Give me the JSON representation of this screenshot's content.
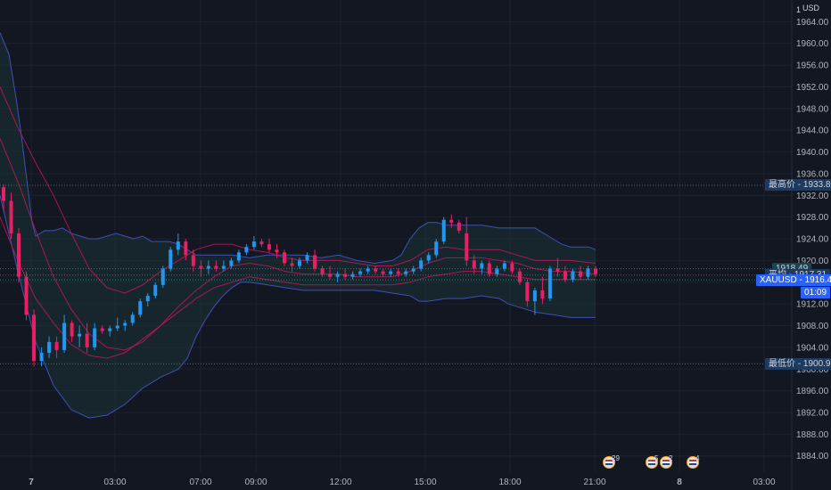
{
  "chart_data": {
    "type": "candlestick",
    "symbol": "XAUUSD",
    "currency": "USD",
    "currency_top": "1",
    "ylim": [
      1881,
      1968
    ],
    "y_ticks": [
      "1964.00",
      "1960.00",
      "1956.00",
      "1952.00",
      "1948.00",
      "1944.00",
      "1940.00",
      "1936.00",
      "1932.00",
      "1928.00",
      "1924.00",
      "1920.00",
      "1916.00",
      "1912.00",
      "1908.00",
      "1904.00",
      "1900.00",
      "1896.00",
      "1892.00",
      "1888.00",
      "1884.00"
    ],
    "x_ticks": [
      "7",
      "03:00",
      "07:00",
      "09:00",
      "12:00",
      "15:00",
      "18:00",
      "21:00",
      "8",
      "03:00"
    ],
    "candles": [
      [
        1933.5,
        1934.0,
        1929.0,
        1931.0
      ],
      [
        1931.0,
        1932.5,
        1924.0,
        1925.0
      ],
      [
        1925.0,
        1926.0,
        1916.0,
        1917.0
      ],
      [
        1917.0,
        1918.0,
        1909.0,
        1910.0
      ],
      [
        1910.0,
        1911.0,
        1900.5,
        1901.5
      ],
      [
        1901.5,
        1904.0,
        1900.5,
        1903.0
      ],
      [
        1903.0,
        1906.0,
        1902.0,
        1905.0
      ],
      [
        1905.0,
        1906.0,
        1902.0,
        1903.5
      ],
      [
        1903.5,
        1910.0,
        1903.0,
        1908.5
      ],
      [
        1908.5,
        1909.0,
        1905.0,
        1906.0
      ],
      [
        1906.0,
        1908.0,
        1904.0,
        1906.5
      ],
      [
        1906.5,
        1908.5,
        1903.0,
        1904.0
      ],
      [
        1904.0,
        1908.5,
        1903.5,
        1907.5
      ],
      [
        1907.5,
        1908.0,
        1906.5,
        1907.0
      ],
      [
        1907.0,
        1908.0,
        1906.0,
        1907.5
      ],
      [
        1907.5,
        1909.5,
        1907.0,
        1908.0
      ],
      [
        1908.0,
        1909.0,
        1907.0,
        1908.5
      ],
      [
        1908.5,
        1910.5,
        1908.0,
        1910.0
      ],
      [
        1910.0,
        1913.0,
        1909.5,
        1912.5
      ],
      [
        1912.5,
        1914.0,
        1911.5,
        1913.5
      ],
      [
        1913.5,
        1916.0,
        1913.0,
        1915.5
      ],
      [
        1915.5,
        1919.0,
        1915.0,
        1918.5
      ],
      [
        1918.5,
        1922.5,
        1918.0,
        1922.0
      ],
      [
        1922.0,
        1925.0,
        1921.0,
        1923.5
      ],
      [
        1923.5,
        1924.0,
        1920.0,
        1921.0
      ],
      [
        1921.0,
        1922.0,
        1918.0,
        1919.0
      ],
      [
        1919.0,
        1920.0,
        1917.0,
        1918.5
      ],
      [
        1918.5,
        1920.0,
        1917.5,
        1919.0
      ],
      [
        1919.0,
        1920.0,
        1918.0,
        1918.5
      ],
      [
        1918.5,
        1920.0,
        1918.0,
        1919.0
      ],
      [
        1919.0,
        1920.5,
        1918.5,
        1920.0
      ],
      [
        1920.0,
        1922.0,
        1919.5,
        1921.5
      ],
      [
        1921.5,
        1923.0,
        1921.0,
        1922.5
      ],
      [
        1922.5,
        1924.5,
        1922.0,
        1923.5
      ],
      [
        1923.5,
        1924.0,
        1922.5,
        1923.0
      ],
      [
        1923.0,
        1924.0,
        1921.5,
        1922.0
      ],
      [
        1922.0,
        1923.0,
        1920.5,
        1921.5
      ],
      [
        1921.5,
        1922.0,
        1919.0,
        1919.5
      ],
      [
        1919.5,
        1920.5,
        1918.0,
        1919.0
      ],
      [
        1919.0,
        1920.5,
        1918.5,
        1920.0
      ],
      [
        1920.0,
        1921.5,
        1919.5,
        1921.0
      ],
      [
        1921.0,
        1922.0,
        1918.0,
        1918.5
      ],
      [
        1918.5,
        1919.0,
        1917.0,
        1917.5
      ],
      [
        1917.5,
        1919.0,
        1916.5,
        1917.0
      ],
      [
        1917.0,
        1918.0,
        1916.0,
        1917.5
      ],
      [
        1917.5,
        1918.5,
        1916.5,
        1917.0
      ],
      [
        1917.0,
        1918.0,
        1916.5,
        1917.5
      ],
      [
        1917.5,
        1918.5,
        1917.0,
        1918.0
      ],
      [
        1918.0,
        1919.0,
        1917.5,
        1918.5
      ],
      [
        1918.5,
        1919.0,
        1917.5,
        1918.0
      ],
      [
        1918.0,
        1918.5,
        1917.0,
        1917.5
      ],
      [
        1917.5,
        1918.5,
        1917.0,
        1918.0
      ],
      [
        1918.0,
        1918.5,
        1917.0,
        1917.5
      ],
      [
        1917.5,
        1918.5,
        1917.0,
        1918.0
      ],
      [
        1918.0,
        1919.0,
        1917.5,
        1918.5
      ],
      [
        1918.5,
        1920.5,
        1918.0,
        1920.0
      ],
      [
        1920.0,
        1921.5,
        1919.5,
        1921.0
      ],
      [
        1921.0,
        1924.0,
        1920.5,
        1923.5
      ],
      [
        1923.5,
        1928.0,
        1923.0,
        1927.5
      ],
      [
        1927.5,
        1928.5,
        1926.0,
        1927.0
      ],
      [
        1927.0,
        1927.5,
        1925.0,
        1925.5
      ],
      [
        1925.0,
        1928.0,
        1919.0,
        1920.0
      ],
      [
        1920.0,
        1921.0,
        1917.5,
        1918.5
      ],
      [
        1918.5,
        1920.0,
        1917.5,
        1919.5
      ],
      [
        1919.5,
        1920.0,
        1917.0,
        1917.5
      ],
      [
        1917.5,
        1919.0,
        1917.0,
        1918.5
      ],
      [
        1918.5,
        1920.0,
        1918.0,
        1919.5
      ],
      [
        1919.5,
        1920.0,
        1917.5,
        1918.0
      ],
      [
        1918.0,
        1918.5,
        1915.5,
        1916.0
      ],
      [
        1916.0,
        1916.5,
        1911.5,
        1912.5
      ],
      [
        1912.5,
        1915.0,
        1910.0,
        1914.5
      ],
      [
        1914.5,
        1917.0,
        1912.0,
        1913.0
      ],
      [
        1913.0,
        1919.0,
        1912.5,
        1918.5
      ],
      [
        1918.5,
        1920.5,
        1917.0,
        1918.0
      ],
      [
        1918.0,
        1919.0,
        1916.0,
        1916.5
      ],
      [
        1916.5,
        1918.5,
        1916.0,
        1918.0
      ],
      [
        1918.0,
        1919.0,
        1916.5,
        1917.0
      ],
      [
        1917.0,
        1919.0,
        1916.5,
        1918.5
      ],
      [
        1918.5,
        1919.0,
        1917.0,
        1917.5
      ]
    ],
    "bollinger_outer": {
      "upper": [
        [
          0,
          1962
        ],
        [
          10,
          1958
        ],
        [
          18,
          1950
        ],
        [
          24,
          1943
        ],
        [
          30,
          1935
        ],
        [
          36,
          1927
        ],
        [
          40,
          1924.5
        ],
        [
          50,
          1925.5
        ],
        [
          60,
          1925.5
        ],
        [
          70,
          1926
        ],
        [
          80,
          1925
        ],
        [
          90,
          1924.5
        ],
        [
          100,
          1924
        ],
        [
          110,
          1924
        ],
        [
          120,
          1924.5
        ],
        [
          130,
          1925
        ],
        [
          150,
          1924
        ],
        [
          160,
          1924.5
        ],
        [
          170,
          1923.5
        ],
        [
          190,
          1923.5
        ],
        [
          200,
          1923
        ],
        [
          210,
          1922
        ],
        [
          220,
          1921
        ],
        [
          240,
          1921
        ],
        [
          260,
          1921
        ],
        [
          280,
          1920.5
        ],
        [
          300,
          1921
        ],
        [
          320,
          1921
        ],
        [
          340,
          1921
        ],
        [
          360,
          1920.5
        ],
        [
          380,
          1921
        ],
        [
          400,
          1920
        ],
        [
          420,
          1919.5
        ],
        [
          440,
          1920
        ],
        [
          450,
          1921
        ],
        [
          460,
          1924
        ],
        [
          470,
          1926
        ],
        [
          480,
          1927
        ],
        [
          490,
          1927
        ],
        [
          500,
          1926.5
        ],
        [
          520,
          1926.5
        ],
        [
          540,
          1926.5
        ],
        [
          560,
          1926
        ],
        [
          580,
          1926
        ],
        [
          600,
          1926
        ],
        [
          610,
          1925
        ],
        [
          620,
          1924
        ],
        [
          630,
          1923
        ],
        [
          640,
          1922.5
        ],
        [
          650,
          1922.5
        ],
        [
          660,
          1922.5
        ],
        [
          668,
          1922
        ]
      ],
      "lower": [
        [
          0,
          1932
        ],
        [
          20,
          1918
        ],
        [
          40,
          1905
        ],
        [
          60,
          1897
        ],
        [
          80,
          1892.5
        ],
        [
          100,
          1891
        ],
        [
          120,
          1891.5
        ],
        [
          140,
          1893.5
        ],
        [
          160,
          1896.5
        ],
        [
          180,
          1898.5
        ],
        [
          200,
          1900
        ],
        [
          210,
          1902
        ],
        [
          220,
          1906
        ],
        [
          230,
          1909
        ],
        [
          240,
          1911.5
        ],
        [
          250,
          1913.5
        ],
        [
          260,
          1915
        ],
        [
          270,
          1916
        ],
        [
          280,
          1916
        ],
        [
          300,
          1915.5
        ],
        [
          320,
          1915
        ],
        [
          340,
          1914.5
        ],
        [
          360,
          1914.5
        ],
        [
          380,
          1914.5
        ],
        [
          400,
          1914.5
        ],
        [
          420,
          1914.5
        ],
        [
          440,
          1914
        ],
        [
          460,
          1913.5
        ],
        [
          470,
          1912.5
        ],
        [
          480,
          1912.5
        ],
        [
          500,
          1913
        ],
        [
          520,
          1913
        ],
        [
          540,
          1913.5
        ],
        [
          560,
          1913
        ],
        [
          570,
          1912
        ],
        [
          580,
          1911.5
        ],
        [
          590,
          1911
        ],
        [
          600,
          1910.5
        ],
        [
          620,
          1910
        ],
        [
          640,
          1909.5
        ],
        [
          668,
          1909.5
        ]
      ]
    },
    "bollinger_inner": {
      "upper": [
        [
          0,
          1952
        ],
        [
          20,
          1944.5
        ],
        [
          40,
          1938
        ],
        [
          60,
          1932
        ],
        [
          80,
          1925
        ],
        [
          100,
          1918.5
        ],
        [
          120,
          1915
        ],
        [
          140,
          1914
        ],
        [
          160,
          1915.5
        ],
        [
          180,
          1918
        ],
        [
          200,
          1920
        ],
        [
          220,
          1922
        ],
        [
          240,
          1923
        ],
        [
          260,
          1923
        ],
        [
          280,
          1922
        ],
        [
          300,
          1921.5
        ],
        [
          320,
          1920.5
        ],
        [
          340,
          1920
        ],
        [
          360,
          1920
        ],
        [
          380,
          1920
        ],
        [
          400,
          1919.5
        ],
        [
          420,
          1919
        ],
        [
          440,
          1919
        ],
        [
          460,
          1920
        ],
        [
          480,
          1922
        ],
        [
          500,
          1922.5
        ],
        [
          520,
          1922
        ],
        [
          540,
          1922
        ],
        [
          560,
          1922
        ],
        [
          580,
          1921
        ],
        [
          600,
          1920
        ],
        [
          620,
          1920
        ],
        [
          640,
          1920
        ],
        [
          668,
          1919.5
        ]
      ],
      "middle": [
        [
          0,
          1942.5
        ],
        [
          20,
          1934.5
        ],
        [
          40,
          1925.5
        ],
        [
          60,
          1917
        ],
        [
          80,
          1911
        ],
        [
          100,
          1906.5
        ],
        [
          120,
          1904
        ],
        [
          140,
          1903.5
        ],
        [
          160,
          1905
        ],
        [
          180,
          1908
        ],
        [
          200,
          1911.5
        ],
        [
          220,
          1914.5
        ],
        [
          240,
          1917
        ],
        [
          260,
          1919
        ],
        [
          280,
          1919.5
        ],
        [
          300,
          1919
        ],
        [
          320,
          1918
        ],
        [
          340,
          1917.5
        ],
        [
          360,
          1917.5
        ],
        [
          380,
          1917.5
        ],
        [
          400,
          1917
        ],
        [
          420,
          1917
        ],
        [
          440,
          1917
        ],
        [
          460,
          1918
        ],
        [
          480,
          1919.5
        ],
        [
          500,
          1920.5
        ],
        [
          520,
          1920.5
        ],
        [
          540,
          1920.5
        ],
        [
          560,
          1920
        ],
        [
          580,
          1919.5
        ],
        [
          600,
          1918.5
        ],
        [
          620,
          1918
        ],
        [
          640,
          1918
        ],
        [
          668,
          1917.5
        ]
      ],
      "lower": [
        [
          0,
          1928
        ],
        [
          20,
          1920
        ],
        [
          40,
          1913
        ],
        [
          60,
          1908.5
        ],
        [
          80,
          1904.5
        ],
        [
          100,
          1902.5
        ],
        [
          120,
          1902
        ],
        [
          140,
          1903
        ],
        [
          160,
          1905.5
        ],
        [
          180,
          1908
        ],
        [
          200,
          1910.5
        ],
        [
          220,
          1913
        ],
        [
          240,
          1915
        ],
        [
          260,
          1916
        ],
        [
          280,
          1917
        ],
        [
          300,
          1916.5
        ],
        [
          320,
          1916
        ],
        [
          340,
          1915.5
        ],
        [
          360,
          1915.5
        ],
        [
          380,
          1915.5
        ],
        [
          400,
          1915.5
        ],
        [
          420,
          1915.5
        ],
        [
          440,
          1915.5
        ],
        [
          460,
          1916
        ],
        [
          480,
          1917
        ],
        [
          500,
          1917.5
        ],
        [
          520,
          1918
        ],
        [
          540,
          1918
        ],
        [
          560,
          1917.5
        ],
        [
          580,
          1917
        ],
        [
          600,
          1916.5
        ],
        [
          620,
          1916.5
        ],
        [
          640,
          1916.5
        ],
        [
          668,
          1916.5
        ]
      ]
    },
    "levels": [
      {
        "label": "最高价",
        "value": "1933.86",
        "price": 1933.86,
        "style": "dark"
      },
      {
        "label": "",
        "value": "1918.49",
        "price": 1918.49,
        "style": "teal"
      },
      {
        "label": "平均",
        "value": "1917.31",
        "price": 1917.31,
        "style": "dark"
      },
      {
        "label": "XAUUSD",
        "value": "1916.43",
        "price": 1916.43,
        "style": "blue"
      },
      {
        "label": "",
        "value": "01:09",
        "price": 1914.0,
        "style": "blue"
      },
      {
        "label": "最低价",
        "value": "1900.97",
        "price": 1900.97,
        "style": "dark"
      }
    ],
    "events": [
      {
        "count": "29",
        "kind": "us-flag"
      },
      {
        "count": "5",
        "kind": "us-flag"
      },
      {
        "count": "2",
        "kind": "us-flag"
      },
      {
        "count": "4",
        "kind": "us-flag"
      }
    ],
    "colors": {
      "bg": "#131722",
      "grid": "#1e2230",
      "up": "#2196f3",
      "down": "#e91e63",
      "band_outer": "#3f51b5",
      "band_inner": "#c2185b",
      "band_fill": "#1a3a3a",
      "text": "#b2b5be"
    }
  }
}
